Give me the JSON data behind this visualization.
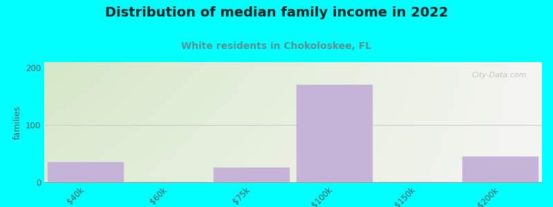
{
  "title": "Distribution of median family income in 2022",
  "subtitle": "White residents in Chokoloskee, FL",
  "categories": [
    "$40k",
    "$60k",
    "$75k",
    "$100k",
    "$150k",
    ">$200k"
  ],
  "values": [
    35,
    0,
    25,
    170,
    0,
    45
  ],
  "bar_color": "#c5b3d8",
  "background_color": "#00ffff",
  "plot_bg_color_topleft": "#d6e8c8",
  "plot_bg_color_right": "#f5f5f2",
  "ylabel": "families",
  "ylim": [
    0,
    210
  ],
  "yticks": [
    0,
    100,
    200
  ],
  "title_fontsize": 14,
  "title_color": "#222222",
  "subtitle_fontsize": 10,
  "subtitle_color": "#5a9090",
  "ylabel_fontsize": 9,
  "ylabel_color": "#555555",
  "tick_label_color": "#555555",
  "watermark": "City-Data.com",
  "grid_color": "#cccccc"
}
